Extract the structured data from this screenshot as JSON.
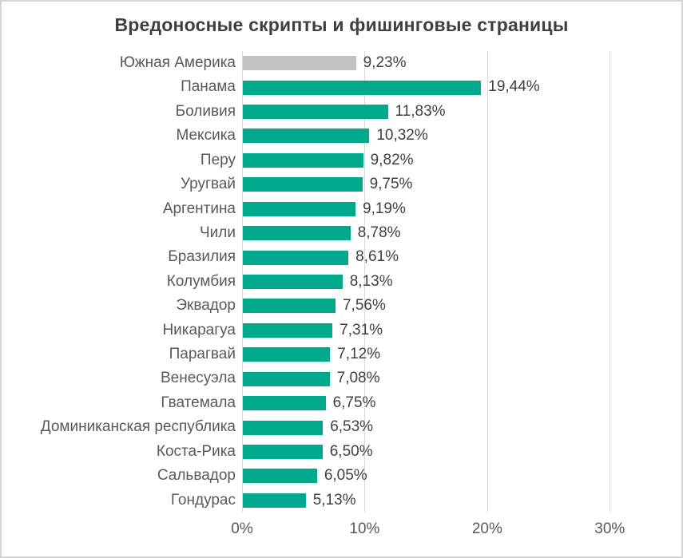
{
  "chart_data": {
    "type": "bar",
    "orientation": "horizontal",
    "title": "Вредоносные скрипты и фишинговые страницы",
    "categories": [
      "Южная Америка",
      "Панама",
      "Боливия",
      "Мексика",
      "Перу",
      "Уругвай",
      "Аргентина",
      "Чили",
      "Бразилия",
      "Колумбия",
      "Эквадор",
      "Никарагуа",
      "Парагвай",
      "Венесуэла",
      "Гватемала",
      "Доминиканская республика",
      "Коста-Рика",
      "Сальвадор",
      "Гондурас"
    ],
    "values": [
      9.23,
      19.44,
      11.83,
      10.32,
      9.82,
      9.75,
      9.19,
      8.78,
      8.61,
      8.13,
      7.56,
      7.31,
      7.12,
      7.08,
      6.75,
      6.53,
      6.5,
      6.05,
      5.13
    ],
    "value_labels": [
      "9,23%",
      "19,44%",
      "11,83%",
      "10,32%",
      "9,82%",
      "9,75%",
      "9,19%",
      "8,78%",
      "8,61%",
      "8,13%",
      "7,56%",
      "7,31%",
      "7,12%",
      "7,08%",
      "6,75%",
      "6,53%",
      "6,50%",
      "6,05%",
      "5,13%"
    ],
    "xlabel": "",
    "ylabel": "",
    "xlim": [
      0,
      35
    ],
    "x_tick_values": [
      0,
      10,
      20,
      30
    ],
    "x_tick_labels": [
      "0%",
      "10%",
      "20%",
      "30%"
    ],
    "grid": true,
    "legend": "none",
    "highlight_index": 0,
    "colors": {
      "bar": "#00a88c",
      "highlight_bar": "#c1c2c4",
      "gridline": "#d9d9d9",
      "title_text": "#3f3f3f",
      "category_text": "#595959",
      "value_text": "#404040",
      "axis_text": "#595959",
      "background": "#ffffff",
      "border": "#d3d6d8"
    }
  }
}
